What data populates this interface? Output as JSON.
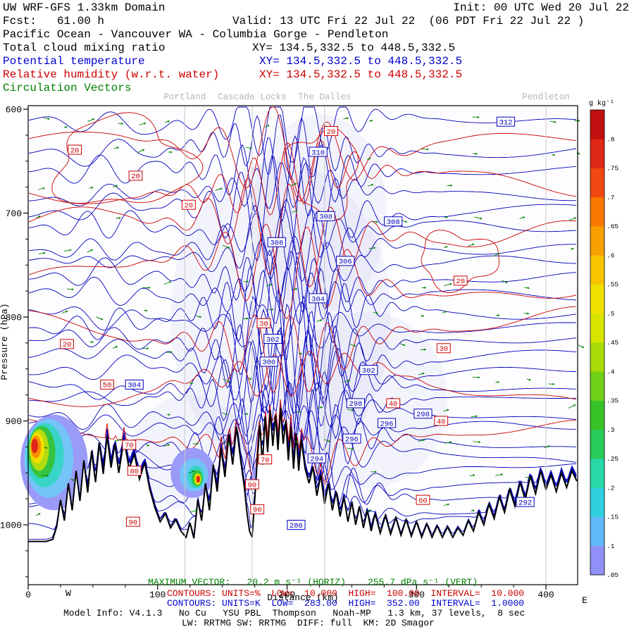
{
  "header": {
    "title_left": "UW WRF-GFS 1.33km Domain",
    "init": "Init: 00 UTC Wed 20 Jul 22",
    "fcst": "Fcst:   61.00 h",
    "valid": "Valid: 13 UTC Fri 22 Jul 22  (06 PDT Fri 22 Jul 22 )",
    "route": "Pacific Ocean - Vancouver WA - Columbia Gorge - Pendleton",
    "fields": [
      {
        "label": "Total cloud mixing ratio",
        "xy": "XY= 134.5,332.5 to 448.5,332.5",
        "color": "#000000"
      },
      {
        "label": "Potential temperature",
        "xy": "XY= 134.5,332.5 to 448.5,332.5",
        "color": "#0000cc"
      },
      {
        "label": "Relative humidity (w.r.t. water)",
        "xy": "XY= 134.5,332.5 to 448.5,332.5",
        "color": "#cc0000"
      },
      {
        "label": "Circulation Vectors",
        "xy": "",
        "color": "#008000"
      }
    ]
  },
  "footer": {
    "max_vector": "MAXIMUM VECTOR:   20.2 m s⁻¹ (HORIZ)    255.7 dPa s⁻¹ (VERT)",
    "contours_rh": "CONTOURS: UNITS=%  LOW=  10.000  HIGH=  100.00  INTERVAL=  10.000",
    "contours_theta": "CONTOURS: UNITS=K  LOW=  283.00  HIGH=  352.00  INTERVAL=  1.0000",
    "model_info": "Model Info: V4.1.3   No Cu   YSU PBL  Thompson   Noah-MP   1.3 km, 37 levels,  8 sec",
    "model_info2": "LW: RRTMG SW: RRTMG  DIFF: full  KM: 2D Smagor",
    "west_label": "W",
    "east_label": "E"
  },
  "chart_data": {
    "type": "cross-section-contour",
    "title": "UW WRF-GFS 1.33km Domain cross section: Pacific Ocean - Vancouver WA - Columbia Gorge - Pendleton",
    "xlabel": "Distance (km)",
    "ylabel": "Pressure (hPa)",
    "x_ticks": [
      0,
      100,
      200,
      300,
      400
    ],
    "x_minor_step_km": 25,
    "y_ticks": [
      600,
      700,
      800,
      900,
      1000
    ],
    "y_minor_step_hpa": 25,
    "x_range_km": [
      0,
      424
    ],
    "pressure_range_hpa": [
      596,
      1058
    ],
    "cities": [
      {
        "name": "Portland",
        "km": 121
      },
      {
        "name": "Cascade Locks",
        "km": 173
      },
      {
        "name": "The Dalles",
        "km": 229
      },
      {
        "name": "Pendleton",
        "km": 400
      }
    ],
    "colorbar": {
      "units": "g kg⁻¹",
      "levels": [
        ".05",
        ".1",
        ".15",
        ".2",
        ".25",
        ".3",
        ".35",
        ".4",
        ".45",
        ".5",
        ".55",
        ".6",
        ".65",
        ".7",
        ".75",
        ".8"
      ],
      "colors": [
        "#9090f8",
        "#60b8f8",
        "#30d0e0",
        "#28d8a8",
        "#28cc58",
        "#38c428",
        "#70d018",
        "#a8dc08",
        "#d8e400",
        "#f0e000",
        "#f8c400",
        "#f8a000",
        "#f87800",
        "#f04810",
        "#e02818",
        "#c01010"
      ]
    },
    "theta_contours": {
      "units": "K",
      "low": 283.0,
      "high": 352.0,
      "interval": 1.0,
      "color": "#0000bb",
      "count": 27,
      "labels": [
        {
          "v": "312",
          "km": 369,
          "p": 612
        },
        {
          "v": "310",
          "km": 224,
          "p": 641
        },
        {
          "v": "308",
          "km": 230,
          "p": 703
        },
        {
          "v": "308",
          "km": 282,
          "p": 708
        },
        {
          "v": "308",
          "km": 192,
          "p": 728
        },
        {
          "v": "306",
          "km": 245,
          "p": 746
        },
        {
          "v": "304",
          "km": 224,
          "p": 782
        },
        {
          "v": "304",
          "km": 82,
          "p": 865
        },
        {
          "v": "302",
          "km": 189,
          "p": 821
        },
        {
          "v": "302",
          "km": 263,
          "p": 851
        },
        {
          "v": "300",
          "km": 186,
          "p": 843
        },
        {
          "v": "298",
          "km": 253,
          "p": 883
        },
        {
          "v": "298",
          "km": 305,
          "p": 893
        },
        {
          "v": "296",
          "km": 277,
          "p": 902
        },
        {
          "v": "296",
          "km": 250,
          "p": 917
        },
        {
          "v": "294",
          "km": 223,
          "p": 936
        },
        {
          "v": "292",
          "km": 384,
          "p": 978
        },
        {
          "v": "286",
          "km": 207,
          "p": 1000
        }
      ]
    },
    "rh_contours": {
      "units": "%",
      "low": 10.0,
      "high": 100.0,
      "interval": 10.0,
      "color": "#cc0000",
      "base_pressures": [
        636,
        672,
        714,
        762,
        814,
        866,
        920
      ],
      "loops": [
        {
          "km": 73,
          "p": 652,
          "rx_km": 52,
          "rp": 42
        },
        {
          "km": 228,
          "p": 660,
          "rx_km": 26,
          "rp": 40
        },
        {
          "km": 332,
          "p": 745,
          "rx_km": 30,
          "rp": 26
        }
      ],
      "labels": [
        {
          "v": "20",
          "km": 36,
          "p": 639
        },
        {
          "v": "20",
          "km": 83,
          "p": 664
        },
        {
          "v": "20",
          "km": 124,
          "p": 692
        },
        {
          "v": "20",
          "km": 234,
          "p": 621
        },
        {
          "v": "20",
          "km": 334,
          "p": 765
        },
        {
          "v": "20",
          "km": 30,
          "p": 826
        },
        {
          "v": "30",
          "km": 182,
          "p": 806
        },
        {
          "v": "30",
          "km": 321,
          "p": 830
        },
        {
          "v": "40",
          "km": 282,
          "p": 883
        },
        {
          "v": "40",
          "km": 319,
          "p": 900
        },
        {
          "v": "50",
          "km": 61,
          "p": 865
        },
        {
          "v": "70",
          "km": 78,
          "p": 923
        },
        {
          "v": "70",
          "km": 183,
          "p": 937
        },
        {
          "v": "80",
          "km": 82,
          "p": 948
        },
        {
          "v": "90",
          "km": 81,
          "p": 997
        },
        {
          "v": "90",
          "km": 173,
          "p": 961
        },
        {
          "v": "90",
          "km": 177,
          "p": 985
        },
        {
          "v": "60",
          "km": 305,
          "p": 976
        }
      ]
    },
    "vectors": {
      "color": "#008000",
      "max_horiz": "20.2 m s⁻¹",
      "max_vert": "255.7 dPa s⁻¹"
    },
    "washes": [
      {
        "km": 195,
        "p": 800,
        "rx_km": 85,
        "rp": 150
      },
      {
        "km": 125,
        "p": 930,
        "rx_km": 45,
        "rp": 55
      },
      {
        "km": 262,
        "p": 880,
        "rx_km": 62,
        "rp": 85
      },
      {
        "km": 225,
        "p": 700,
        "rx_km": 52,
        "rp": 95
      }
    ],
    "clouds": [
      {
        "km": 20,
        "p": 940,
        "rx_km": 26,
        "rp": 46,
        "c": "#9a9af8"
      },
      {
        "km": 16,
        "p": 936,
        "rx_km": 19,
        "rp": 38,
        "c": "#74c4f8"
      },
      {
        "km": 13,
        "p": 933,
        "rx_km": 14.5,
        "rp": 31,
        "c": "#38d4c8"
      },
      {
        "km": 10.5,
        "p": 930,
        "rx_km": 10.5,
        "rp": 25,
        "c": "#34c440"
      },
      {
        "km": 8.5,
        "p": 928,
        "rx_km": 7.5,
        "rp": 20,
        "c": "#b0dc10"
      },
      {
        "km": 7,
        "p": 926,
        "rx_km": 5.5,
        "rp": 15,
        "c": "#f0e000"
      },
      {
        "km": 6,
        "p": 925,
        "rx_km": 4,
        "rp": 11,
        "c": "#f89000"
      },
      {
        "km": 5,
        "p": 924,
        "rx_km": 2.6,
        "rp": 7,
        "c": "#e02818"
      },
      {
        "km": 127,
        "p": 950,
        "rx_km": 17,
        "rp": 24,
        "c": "#9a9af8"
      },
      {
        "km": 128,
        "p": 952,
        "rx_km": 11,
        "rp": 16,
        "c": "#74c4f8"
      },
      {
        "km": 129.5,
        "p": 954,
        "rx_km": 6.5,
        "rp": 11,
        "c": "#38d4c8"
      },
      {
        "km": 130.5,
        "p": 955,
        "rx_km": 4.2,
        "rp": 8,
        "c": "#34c440"
      },
      {
        "km": 131,
        "p": 956,
        "rx_km": 2.6,
        "rp": 5.5,
        "c": "#f0e000"
      },
      {
        "km": 131.3,
        "p": 956,
        "rx_km": 1.5,
        "rp": 3.5,
        "c": "#e02818"
      },
      {
        "km": 158,
        "p": 958,
        "rx_km": 5,
        "rp": 13,
        "c": "#9a9af8"
      },
      {
        "km": 166,
        "p": 975,
        "rx_km": 3.5,
        "rp": 9,
        "c": "#9a9af8"
      },
      {
        "km": 176,
        "p": 952,
        "rx_km": 3,
        "rp": 8,
        "c": "#9a9af8"
      },
      {
        "km": 190,
        "p": 972,
        "rx_km": 3.2,
        "rp": 7,
        "c": "#74c4f8"
      },
      {
        "km": 191,
        "p": 973,
        "rx_km": 1.6,
        "rp": 3.5,
        "c": "#e02818"
      },
      {
        "km": 210,
        "p": 965,
        "rx_km": 2.5,
        "rp": 6,
        "c": "#9a9af8"
      }
    ],
    "terrain": [
      [
        0,
        1016
      ],
      [
        14,
        1016
      ],
      [
        19,
        1014
      ],
      [
        22,
        1002
      ],
      [
        25,
        976
      ],
      [
        28,
        996
      ],
      [
        31,
        960
      ],
      [
        34,
        986
      ],
      [
        37,
        948
      ],
      [
        40,
        977
      ],
      [
        43,
        938
      ],
      [
        46,
        969
      ],
      [
        49,
        929
      ],
      [
        52,
        959
      ],
      [
        55,
        921
      ],
      [
        58,
        951
      ],
      [
        61,
        914
      ],
      [
        64,
        945
      ],
      [
        67,
        922
      ],
      [
        70,
        950
      ],
      [
        74,
        918
      ],
      [
        78,
        946
      ],
      [
        82,
        932
      ],
      [
        86,
        956
      ],
      [
        90,
        940
      ],
      [
        94,
        966
      ],
      [
        98,
        984
      ],
      [
        102,
        997
      ],
      [
        106,
        989
      ],
      [
        110,
        1003
      ],
      [
        114,
        995
      ],
      [
        118,
        1006
      ],
      [
        122,
        1012
      ],
      [
        125,
        998
      ],
      [
        128,
        1013
      ],
      [
        131,
        976
      ],
      [
        134,
        996
      ],
      [
        137,
        960
      ],
      [
        140,
        986
      ],
      [
        143,
        942
      ],
      [
        146,
        968
      ],
      [
        149,
        926
      ],
      [
        152,
        954
      ],
      [
        155,
        913
      ],
      [
        158,
        942
      ],
      [
        161,
        906
      ],
      [
        164,
        936
      ],
      [
        167,
        964
      ],
      [
        169,
        988
      ],
      [
        171,
        1006
      ],
      [
        173,
        1012
      ],
      [
        175,
        976
      ],
      [
        177,
        938
      ],
      [
        179,
        904
      ],
      [
        181,
        942
      ],
      [
        183,
        896
      ],
      [
        185,
        930
      ],
      [
        187,
        890
      ],
      [
        189,
        924
      ],
      [
        191,
        894
      ],
      [
        193,
        928
      ],
      [
        195,
        888
      ],
      [
        197,
        922
      ],
      [
        199,
        900
      ],
      [
        201,
        938
      ],
      [
        203,
        906
      ],
      [
        205,
        946
      ],
      [
        207,
        912
      ],
      [
        209,
        948
      ],
      [
        211,
        918
      ],
      [
        214,
        946
      ],
      [
        217,
        960
      ],
      [
        220,
        944
      ],
      [
        223,
        972
      ],
      [
        226,
        952
      ],
      [
        229,
        980
      ],
      [
        232,
        960
      ],
      [
        235,
        986
      ],
      [
        238,
        968
      ],
      [
        241,
        992
      ],
      [
        244,
        973
      ],
      [
        247,
        997
      ],
      [
        250,
        978
      ],
      [
        253,
        1000
      ],
      [
        256,
        982
      ],
      [
        259,
        1003
      ],
      [
        262,
        986
      ],
      [
        265,
        1006
      ],
      [
        268,
        989
      ],
      [
        272,
        1008
      ],
      [
        276,
        991
      ],
      [
        280,
        1009
      ],
      [
        284,
        993
      ],
      [
        288,
        1010
      ],
      [
        292,
        995
      ],
      [
        296,
        1011
      ],
      [
        300,
        997
      ],
      [
        304,
        1012
      ],
      [
        308,
        999
      ],
      [
        312,
        1012
      ],
      [
        316,
        1001
      ],
      [
        320,
        1012
      ],
      [
        324,
        1002
      ],
      [
        328,
        1012
      ],
      [
        332,
        1003
      ],
      [
        336,
        1010
      ],
      [
        340,
        996
      ],
      [
        344,
        1006
      ],
      [
        348,
        988
      ],
      [
        352,
        1000
      ],
      [
        356,
        980
      ],
      [
        360,
        994
      ],
      [
        364,
        973
      ],
      [
        368,
        988
      ],
      [
        372,
        966
      ],
      [
        376,
        982
      ],
      [
        380,
        959
      ],
      [
        384,
        976
      ],
      [
        388,
        953
      ],
      [
        392,
        970
      ],
      [
        396,
        948
      ],
      [
        400,
        966
      ],
      [
        404,
        952
      ],
      [
        408,
        968
      ],
      [
        412,
        950
      ],
      [
        416,
        964
      ],
      [
        420,
        948
      ],
      [
        424,
        958
      ]
    ]
  }
}
